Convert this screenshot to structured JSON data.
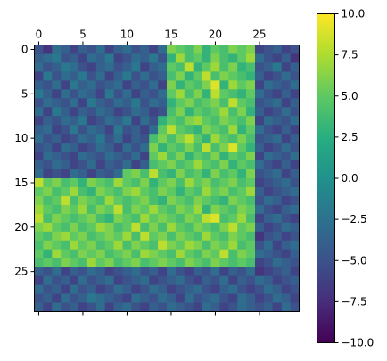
{
  "chart_data": {
    "type": "heatmap",
    "title": "",
    "xlabel": "",
    "ylabel": "",
    "rows": 30,
    "cols": 30,
    "xlim": [
      -0.5,
      29.5
    ],
    "ylim": [
      29.5,
      -0.5
    ],
    "x_axis_position": "top",
    "x_tick_values": [
      0,
      5,
      10,
      15,
      20,
      25
    ],
    "x_tick_labels": [
      "0",
      "5",
      "10",
      "15",
      "20",
      "25"
    ],
    "y_tick_values": [
      0,
      5,
      10,
      15,
      20,
      25
    ],
    "y_tick_labels": [
      "0",
      "5",
      "10",
      "15",
      "20",
      "25"
    ],
    "grid": false,
    "colormap": "viridis",
    "vmin": -10,
    "vmax": 10,
    "colorbar": {
      "position": "right",
      "ticks": [
        10,
        7.5,
        5,
        2.5,
        0,
        -2.5,
        -5,
        -7.5,
        -10
      ],
      "tick_labels": [
        "10.0",
        "7.5",
        "5.0",
        "2.5",
        "0.0",
        "−2.5",
        "−5.0",
        "−7.5",
        "−10.0"
      ]
    },
    "values": [
      [
        -5,
        -7,
        -3,
        -4,
        -6,
        -4,
        -5,
        -3,
        -6,
        -4,
        -3,
        -5,
        -4,
        -6,
        -3,
        6,
        5,
        4,
        6,
        3,
        5,
        4,
        6,
        5,
        6,
        -6,
        -5,
        -4,
        -6,
        -5
      ],
      [
        -4,
        -3,
        -2,
        -5,
        -4,
        -6,
        -3,
        -4,
        -2,
        -6,
        -5,
        -3,
        -4,
        -2,
        -5,
        3,
        7,
        4,
        5,
        3,
        6,
        4,
        3,
        5,
        7,
        -3,
        -5,
        -6,
        -4,
        -7
      ],
      [
        -3,
        -5,
        -4,
        -2,
        -3,
        -5,
        -6,
        -4,
        -3,
        -5,
        -4,
        -2,
        -6,
        -4,
        -3,
        5,
        4,
        8,
        3,
        5,
        7,
        4,
        6,
        3,
        4,
        -5,
        -4,
        -2,
        -6,
        -4
      ],
      [
        -6,
        -2,
        -5,
        -3,
        -4,
        -2,
        -5,
        -3,
        -6,
        -4,
        -2,
        -5,
        -3,
        -5,
        -4,
        4,
        6,
        3,
        5,
        8,
        4,
        6,
        5,
        4,
        3,
        -4,
        -6,
        -5,
        -3,
        -5
      ],
      [
        -4,
        -5,
        -3,
        -6,
        -2,
        -4,
        -3,
        -5,
        -4,
        -3,
        -6,
        -4,
        -5,
        -3,
        -6,
        6,
        3,
        5,
        4,
        6,
        9,
        3,
        7,
        5,
        6,
        -6,
        -3,
        -4,
        -5,
        -3
      ],
      [
        -2,
        -4,
        -6,
        -3,
        -5,
        -3,
        -4,
        -6,
        -2,
        -5,
        -3,
        -6,
        -4,
        -5,
        -3,
        5,
        7,
        4,
        6,
        3,
        8,
        5,
        4,
        3,
        5,
        -3,
        -5,
        -6,
        -4,
        -6
      ],
      [
        -5,
        -3,
        -4,
        -5,
        -3,
        -6,
        -2,
        -4,
        -5,
        -3,
        -4,
        -2,
        -5,
        -3,
        -4,
        3,
        5,
        6,
        4,
        5,
        6,
        4,
        8,
        5,
        4,
        -5,
        -4,
        -3,
        -6,
        -4
      ],
      [
        -3,
        -6,
        -2,
        -4,
        -6,
        -4,
        -5,
        -3,
        -4,
        -6,
        -5,
        -3,
        -4,
        -6,
        -5,
        4,
        6,
        3,
        5,
        4,
        5,
        7,
        4,
        6,
        3,
        -4,
        -6,
        -5,
        -3,
        -5
      ],
      [
        -6,
        -4,
        -5,
        -3,
        -4,
        -2,
        -6,
        -5,
        -3,
        -4,
        -2,
        -6,
        -3,
        -5,
        3,
        5,
        4,
        6,
        7,
        5,
        4,
        6,
        5,
        4,
        6,
        -6,
        -3,
        -4,
        -5,
        -3
      ],
      [
        -4,
        -3,
        -6,
        -5,
        -2,
        -5,
        -3,
        -4,
        -6,
        -2,
        -5,
        -4,
        -6,
        -3,
        5,
        8,
        5,
        4,
        3,
        6,
        5,
        4,
        7,
        3,
        5,
        -3,
        -5,
        -6,
        -4,
        -6
      ],
      [
        -3,
        -5,
        -4,
        -6,
        -5,
        -3,
        -4,
        -2,
        -5,
        -3,
        -6,
        -4,
        -5,
        4,
        6,
        4,
        6,
        8,
        5,
        3,
        7,
        5,
        4,
        6,
        4,
        -5,
        -4,
        -3,
        -6,
        -4
      ],
      [
        -5,
        -4,
        -6,
        -3,
        -4,
        -6,
        -5,
        -3,
        -4,
        -6,
        -3,
        -5,
        -3,
        6,
        3,
        5,
        4,
        6,
        4,
        8,
        4,
        6,
        9,
        5,
        3,
        -4,
        -6,
        -5,
        -3,
        -5
      ],
      [
        -6,
        -3,
        -4,
        -5,
        -6,
        -3,
        -4,
        -5,
        -3,
        -4,
        -5,
        -3,
        -6,
        5,
        7,
        4,
        6,
        3,
        5,
        4,
        6,
        3,
        5,
        4,
        6,
        -6,
        -3,
        -4,
        -5,
        -3
      ],
      [
        -4,
        -5,
        -3,
        -4,
        -6,
        -5,
        -3,
        -6,
        -4,
        -5,
        -3,
        -6,
        -4,
        4,
        5,
        6,
        4,
        5,
        7,
        5,
        4,
        6,
        3,
        5,
        4,
        -3,
        -5,
        -6,
        -4,
        -6
      ],
      [
        -3,
        -6,
        -5,
        -6,
        -3,
        -4,
        -6,
        -4,
        -5,
        -3,
        5,
        6,
        4,
        8,
        4,
        3,
        6,
        4,
        5,
        3,
        6,
        4,
        5,
        3,
        6,
        -5,
        -4,
        -3,
        -6,
        -4
      ],
      [
        8,
        5,
        6,
        4,
        5,
        3,
        6,
        5,
        4,
        7,
        5,
        4,
        6,
        3,
        5,
        6,
        4,
        7,
        5,
        6,
        4,
        5,
        6,
        4,
        5,
        -6,
        -5,
        -4,
        -3,
        -5
      ],
      [
        5,
        6,
        4,
        5,
        7,
        4,
        3,
        6,
        5,
        4,
        6,
        7,
        5,
        4,
        6,
        5,
        3,
        5,
        4,
        7,
        5,
        6,
        4,
        5,
        7,
        -4,
        -6,
        -5,
        -4,
        -3
      ],
      [
        6,
        4,
        5,
        8,
        4,
        6,
        5,
        4,
        7,
        5,
        4,
        5,
        6,
        4,
        3,
        6,
        5,
        4,
        6,
        5,
        4,
        3,
        6,
        5,
        4,
        -5,
        -3,
        -4,
        -6,
        -5
      ],
      [
        7,
        5,
        4,
        6,
        5,
        7,
        4,
        6,
        5,
        8,
        4,
        6,
        5,
        7,
        5,
        4,
        6,
        5,
        7,
        3,
        6,
        5,
        4,
        6,
        5,
        -3,
        -5,
        -6,
        -4,
        -3
      ],
      [
        8,
        4,
        6,
        5,
        4,
        5,
        6,
        4,
        3,
        6,
        5,
        4,
        7,
        5,
        6,
        5,
        4,
        6,
        5,
        8,
        9,
        4,
        5,
        7,
        4,
        -6,
        -4,
        -3,
        -5,
        -6
      ],
      [
        6,
        7,
        5,
        4,
        6,
        4,
        5,
        7,
        6,
        4,
        5,
        8,
        4,
        6,
        4,
        7,
        5,
        4,
        6,
        5,
        4,
        6,
        8,
        5,
        6,
        -4,
        -6,
        -5,
        -3,
        -4
      ],
      [
        5,
        4,
        6,
        7,
        5,
        6,
        4,
        5,
        6,
        5,
        7,
        4,
        8,
        5,
        6,
        4,
        6,
        5,
        4,
        7,
        5,
        4,
        6,
        5,
        4,
        -7,
        -5,
        -4,
        -6,
        -5
      ],
      [
        4,
        6,
        5,
        4,
        7,
        5,
        6,
        4,
        5,
        7,
        4,
        6,
        5,
        4,
        8,
        6,
        5,
        7,
        6,
        4,
        6,
        5,
        7,
        4,
        5,
        -5,
        -3,
        -6,
        -4,
        -3
      ],
      [
        5,
        3,
        7,
        5,
        4,
        6,
        5,
        6,
        4,
        5,
        6,
        4,
        7,
        6,
        5,
        4,
        7,
        5,
        4,
        6,
        5,
        8,
        4,
        6,
        5,
        -3,
        -4,
        -5,
        -6,
        -4
      ],
      [
        4,
        5,
        4,
        6,
        5,
        4,
        7,
        5,
        6,
        4,
        5,
        6,
        4,
        5,
        6,
        5,
        4,
        6,
        5,
        4,
        6,
        5,
        4,
        5,
        4,
        -6,
        -5,
        -3,
        -4,
        -5
      ],
      [
        -4,
        -5,
        -3,
        -6,
        -4,
        -5,
        -3,
        -4,
        -6,
        -5,
        -4,
        -3,
        -5,
        -4,
        -6,
        -3,
        -5,
        -6,
        -4,
        -5,
        -3,
        -6,
        -4,
        -5,
        -3,
        -7,
        -6,
        -5,
        -4,
        -6
      ],
      [
        -6,
        -3,
        -5,
        -4,
        -6,
        -3,
        -5,
        -4,
        -3,
        -6,
        -5,
        -4,
        -3,
        -6,
        -5,
        -4,
        -3,
        -5,
        -6,
        -4,
        -5,
        -3,
        -6,
        -4,
        -5,
        -3,
        -4,
        -6,
        -5,
        -4
      ],
      [
        -3,
        -5,
        -4,
        -6,
        -3,
        -5,
        -4,
        -6,
        -5,
        -3,
        -4,
        -6,
        -5,
        -3,
        -4,
        -6,
        -5,
        -4,
        -3,
        -5,
        -6,
        -4,
        -3,
        -5,
        -6,
        -5,
        -3,
        -4,
        -6,
        -5
      ],
      [
        -5,
        -4,
        -6,
        -3,
        -5,
        -4,
        -2,
        -3,
        -4,
        -5,
        -6,
        -3,
        -4,
        -5,
        -3,
        -4,
        -6,
        -3,
        -5,
        -4,
        -3,
        -5,
        -6,
        -3,
        -4,
        -6,
        -5,
        -3,
        -4,
        -6
      ],
      [
        -4,
        -6,
        -3,
        -5,
        -4,
        -6,
        -5,
        -3,
        -6,
        -4,
        -3,
        -5,
        -6,
        -4,
        -5,
        -3,
        -4,
        -5,
        -6,
        -3,
        -4,
        -6,
        -5,
        -3,
        -4,
        -5,
        -4,
        -6,
        -3,
        -5
      ]
    ]
  }
}
